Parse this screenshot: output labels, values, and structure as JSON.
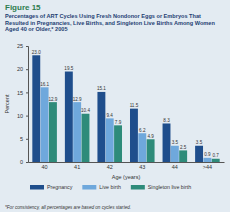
{
  "chart_data": {
    "type": "bar",
    "title": "Figure 15",
    "subtitle": "Percentages of ART Cycles Using Fresh Nondonor Eggs or Embryos That Resulted in Pregnancies, Live Births, and Singleton Live Births Among Women Aged 40 or Older,* 2005",
    "x_label": "Age (years)",
    "y_label": "Percent",
    "annotation": "*For consistency, all percentages are based on cycles started.",
    "categories": [
      "40",
      "41",
      "42",
      "43",
      "44",
      ">44"
    ],
    "series": [
      {
        "name": "Pregnancy",
        "color": "#1f4e8c",
        "values": [
          23.0,
          19.5,
          15.1,
          11.5,
          8.3,
          3.5
        ]
      },
      {
        "name": "Live birth",
        "color": "#6fa8dc",
        "values": [
          16.1,
          12.9,
          9.4,
          6.2,
          3.5,
          0.9
        ]
      },
      {
        "name": "Singleton live birth",
        "color": "#2e8b7a",
        "values": [
          12.9,
          10.4,
          7.9,
          4.9,
          2.5,
          0.7
        ]
      }
    ],
    "ylim": [
      0,
      25
    ],
    "yticks": [
      0,
      5,
      10,
      15,
      20,
      25
    ],
    "grid": false,
    "data_labels": true,
    "legend": "bottom"
  }
}
